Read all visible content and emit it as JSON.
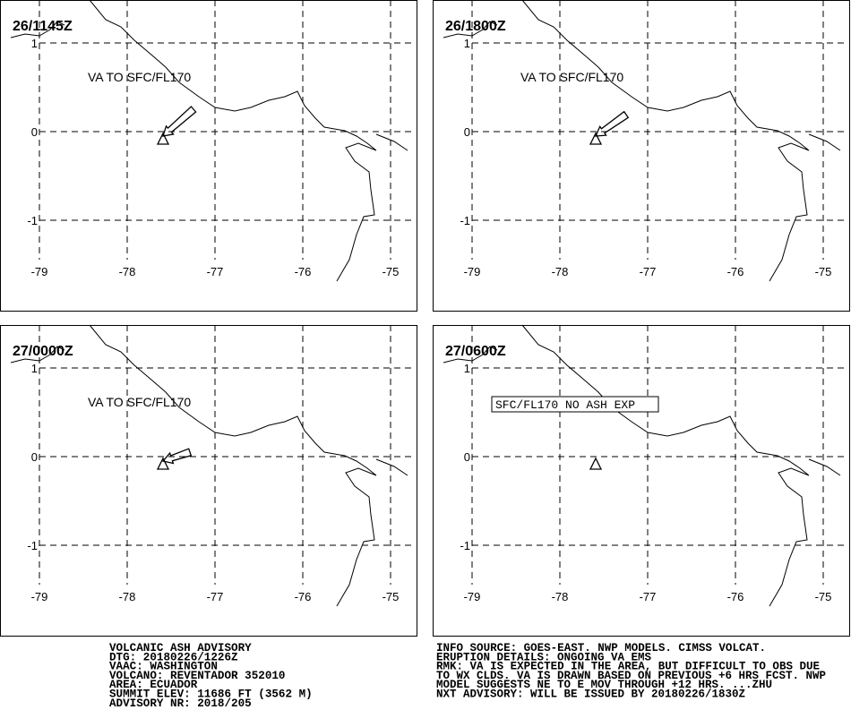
{
  "panels": [
    {
      "time": "26/1145Z",
      "annotation": "VA TO SFC/FL170"
    },
    {
      "time": "26/1800Z",
      "annotation": "VA TO SFC/FL170"
    },
    {
      "time": "27/0000Z",
      "annotation": "VA TO SFC/FL170"
    },
    {
      "time": "27/0600Z",
      "annotation": "SFC/FL170 NO ASH EXP"
    }
  ],
  "map": {
    "xticks": [
      -79,
      -78,
      -77,
      -76,
      -75
    ],
    "yticks": [
      1,
      0,
      -1
    ]
  },
  "advisory_left": [
    "VOLCANIC ASH ADVISORY",
    "DTG: 20180226/1226Z",
    "VAAC: WASHINGTON",
    "VOLCANO: REVENTADOR 352010",
    "AREA: ECUADOR",
    "SUMMIT ELEV: 11686 FT (3562 M)",
    "ADVISORY NR: 2018/205"
  ],
  "advisory_right": [
    "INFO SOURCE: GOES-EAST. NWP MODELS. CIMSS VOLCAT.",
    "ERUPTION DETAILS: ONGOING VA EMS",
    "RMK: VA IS EXPECTED IN THE AREA, BUT DIFFICULT TO OBS DUE",
    "TO WX CLDS. VA IS DRAWN BASED ON PREVIOUS +6 HRS FCST. NWP",
    "MODEL SUGGESTS NE TO E MOV THROUGH +12 HRS. ...ZHU",
    "NXT ADVISORY: WILL BE ISSUED BY 20180226/1830Z"
  ]
}
